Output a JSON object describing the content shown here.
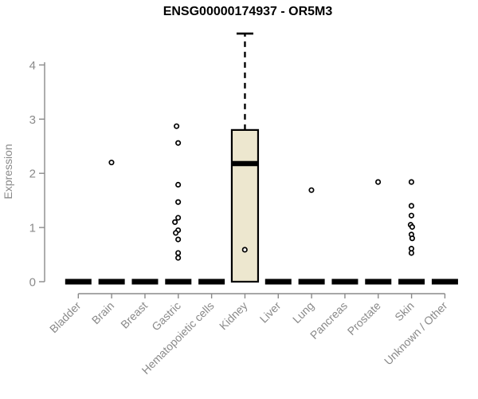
{
  "chart_data": {
    "type": "boxplot",
    "title": "ENSG00000174937 - OR5M3",
    "ylabel": "Expression",
    "xlabel": "",
    "ylim": [
      0,
      4.6
    ],
    "yticks": [
      0,
      1,
      2,
      3,
      4
    ],
    "grid": false,
    "legend": false,
    "categories": [
      "Bladder",
      "Brain",
      "Breast",
      "Gastric",
      "Hematopoietic cells",
      "Kidney",
      "Liver",
      "Lung",
      "Pancreas",
      "Prostate",
      "Skin",
      "Unknown / Other"
    ],
    "boxes": [
      {
        "category": "Bladder",
        "q1": 0,
        "median": 0,
        "q3": 0,
        "whisker_low": 0,
        "whisker_high": 0,
        "points": []
      },
      {
        "category": "Brain",
        "q1": 0,
        "median": 0,
        "q3": 0,
        "whisker_low": 0,
        "whisker_high": 0,
        "points": []
      },
      {
        "category": "Breast",
        "q1": 0,
        "median": 0,
        "q3": 0,
        "whisker_low": 0,
        "whisker_high": 0,
        "points": [
          {
            "v": 2.2,
            "dx": 0
          }
        ]
      },
      {
        "category": "Gastric",
        "q1": 0,
        "median": 0,
        "q3": 0,
        "whisker_low": 0,
        "whisker_high": 0,
        "points": []
      },
      {
        "category": "Hematopoietic cells",
        "q1": 0,
        "median": 0,
        "q3": 0,
        "whisker_low": 0,
        "whisker_high": 0,
        "points": [
          {
            "v": 2.87,
            "dx": -2
          },
          {
            "v": 2.56,
            "dx": 0
          },
          {
            "v": 1.79,
            "dx": 0
          },
          {
            "v": 1.47,
            "dx": 0
          },
          {
            "v": 1.18,
            "dx": 0
          },
          {
            "v": 1.1,
            "dx": -4
          },
          {
            "v": 0.95,
            "dx": 0
          },
          {
            "v": 0.9,
            "dx": -3
          },
          {
            "v": 0.78,
            "dx": 0
          },
          {
            "v": 0.53,
            "dx": 0
          },
          {
            "v": 0.44,
            "dx": 0
          }
        ]
      },
      {
        "category": "Kidney",
        "q1": 0,
        "median": 2.18,
        "q3": 2.8,
        "whisker_low": 0,
        "whisker_high": 4.58,
        "points": []
      },
      {
        "category": "Liver",
        "q1": 0,
        "median": 0,
        "q3": 0,
        "whisker_low": 0,
        "whisker_high": 0,
        "points": [
          {
            "v": 0.59,
            "dx": 0
          }
        ]
      },
      {
        "category": "Lung",
        "q1": 0,
        "median": 0,
        "q3": 0,
        "whisker_low": 0,
        "whisker_high": 0,
        "points": []
      },
      {
        "category": "Pancreas",
        "q1": 0,
        "median": 0,
        "q3": 0,
        "whisker_low": 0,
        "whisker_high": 0,
        "points": [
          {
            "v": 1.69,
            "dx": 0
          }
        ]
      },
      {
        "category": "Prostate",
        "q1": 0,
        "median": 0,
        "q3": 0,
        "whisker_low": 0,
        "whisker_high": 0,
        "points": []
      },
      {
        "category": "Skin",
        "q1": 0,
        "median": 0,
        "q3": 0,
        "whisker_low": 0,
        "whisker_high": 0,
        "points": [
          {
            "v": 1.84,
            "dx": 0
          }
        ]
      },
      {
        "category": "Unknown / Other",
        "q1": 0,
        "median": 0,
        "q3": 0,
        "whisker_low": 0,
        "whisker_high": 0,
        "points": [
          {
            "v": 1.84,
            "dx": 0
          },
          {
            "v": 1.4,
            "dx": 0
          },
          {
            "v": 1.22,
            "dx": 0
          },
          {
            "v": 1.05,
            "dx": -1
          },
          {
            "v": 1.01,
            "dx": 1
          },
          {
            "v": 0.87,
            "dx": 0
          },
          {
            "v": 0.8,
            "dx": 1
          },
          {
            "v": 0.61,
            "dx": 0
          },
          {
            "v": 0.53,
            "dx": 0
          }
        ]
      }
    ]
  },
  "colors": {
    "box_fill": "#EDE7CF",
    "box_stroke": "#000000",
    "median": "#000000",
    "outlier_stroke": "#000000",
    "outlier_fill": "#FFFFFF",
    "axis": "#8A8A8A",
    "tick_text": "#8A8A8A",
    "title_text": "#000000",
    "background": "#FFFFFF"
  }
}
